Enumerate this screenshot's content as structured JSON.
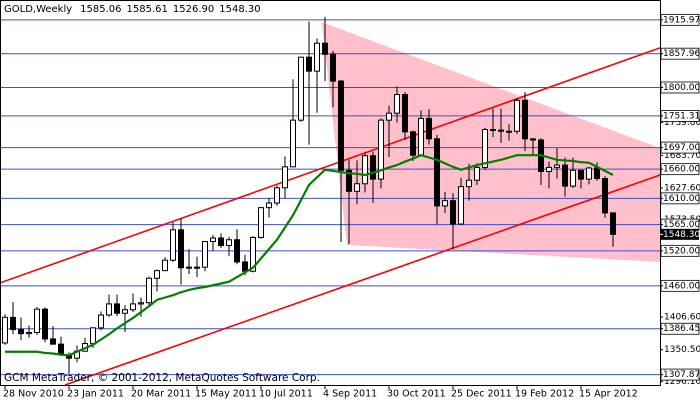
{
  "chart_data": {
    "type": "candlestick",
    "title": "GOLD,Weekly",
    "header_values": [
      "1585.06",
      "1585.61",
      "1526.90",
      "1548.30"
    ],
    "footer": "GCM MetaTrader, © 2001-2012, MetaQuotes Software Corp.",
    "categories": [
      "28 Nov 2010",
      null,
      null,
      null,
      null,
      null,
      null,
      null,
      "23 Jan 2011",
      null,
      null,
      null,
      null,
      null,
      null,
      null,
      "20 Mar 2011",
      null,
      null,
      null,
      null,
      null,
      null,
      null,
      "15 May 2011",
      null,
      null,
      null,
      null,
      null,
      null,
      null,
      "10 Jul 2011",
      null,
      null,
      null,
      null,
      null,
      null,
      null,
      "4 Sep 2011",
      null,
      null,
      null,
      null,
      null,
      null,
      null,
      "30 Oct 2011",
      null,
      null,
      null,
      null,
      null,
      null,
      null,
      "25 Dec 2011",
      null,
      null,
      null,
      null,
      null,
      null,
      null,
      "19 Feb 2012",
      null,
      null,
      null,
      null,
      null,
      null,
      null,
      "15 Apr 2012",
      null,
      null,
      null,
      null
    ],
    "open": [
      1362,
      1406,
      1385,
      1378,
      1380,
      1420,
      1369,
      1360,
      1342,
      1336,
      1348,
      1361,
      1388,
      1410,
      1429,
      1413,
      1419,
      1429,
      1431,
      1473,
      1486,
      1504,
      1556,
      1491,
      1492,
      1492,
      1536,
      1542,
      1529,
      1539,
      1501,
      1485,
      1543,
      1594,
      1602,
      1628,
      1664,
      1744,
      1852,
      1828,
      1876,
      1857,
      1811,
      1658,
      1622,
      1635,
      1683,
      1643,
      1744,
      1756,
      1788,
      1724,
      1684,
      1747,
      1712,
      1597,
      1606,
      1566,
      1630,
      1641,
      1663,
      1728,
      1727,
      1725,
      1725,
      1778,
      1712,
      1710,
      1656,
      1663,
      1667,
      1631,
      1658,
      1643,
      1662,
      1644,
      1585.06
    ],
    "high": [
      1411,
      1432,
      1406,
      1392,
      1424,
      1423,
      1391,
      1373,
      1346,
      1358,
      1371,
      1389,
      1416,
      1445,
      1445,
      1427,
      1447,
      1440,
      1476,
      1488,
      1509,
      1569,
      1575,
      1523,
      1510,
      1536,
      1547,
      1550,
      1544,
      1557,
      1513,
      1545,
      1595,
      1611,
      1632,
      1682,
      1814,
      1853,
      1913,
      1884,
      1921,
      1863,
      1813,
      1676,
      1675,
      1687,
      1690,
      1747,
      1769,
      1802,
      1792,
      1726,
      1761,
      1763,
      1719,
      1621,
      1619,
      1645,
      1669,
      1670,
      1731,
      1764,
      1764,
      1737,
      1782,
      1792,
      1713,
      1713,
      1673,
      1696,
      1680,
      1680,
      1658,
      1664,
      1672,
      1648,
      1585.61
    ],
    "low": [
      1359,
      1377,
      1367,
      1371,
      1376,
      1363,
      1362,
      1340,
      1309,
      1329,
      1347,
      1354,
      1384,
      1407,
      1408,
      1381,
      1415,
      1407,
      1425,
      1450,
      1486,
      1501,
      1462,
      1480,
      1475,
      1485,
      1520,
      1525,
      1511,
      1497,
      1478,
      1483,
      1541,
      1577,
      1597,
      1610,
      1664,
      1741,
      1702,
      1757,
      1811,
      1766,
      1535,
      1532,
      1600,
      1620,
      1602,
      1627,
      1681,
      1740,
      1710,
      1674,
      1682,
      1702,
      1565,
      1585,
      1523,
      1565,
      1606,
      1633,
      1659,
      1715,
      1705,
      1709,
      1720,
      1691,
      1683,
      1633,
      1627,
      1644,
      1613,
      1628,
      1627,
      1634,
      1640,
      1577,
      1526.9
    ],
    "close": [
      1406,
      1385,
      1378,
      1380,
      1420,
      1369,
      1360,
      1342,
      1336,
      1348,
      1361,
      1388,
      1410,
      1429,
      1413,
      1419,
      1429,
      1431,
      1473,
      1486,
      1504,
      1556,
      1491,
      1492,
      1492,
      1536,
      1542,
      1529,
      1539,
      1501,
      1485,
      1543,
      1594,
      1602,
      1628,
      1664,
      1744,
      1852,
      1828,
      1876,
      1857,
      1811,
      1658,
      1622,
      1635,
      1683,
      1643,
      1744,
      1756,
      1788,
      1724,
      1684,
      1747,
      1712,
      1597,
      1606,
      1566,
      1630,
      1641,
      1663,
      1728,
      1727,
      1725,
      1725,
      1778,
      1712,
      1710,
      1656,
      1663,
      1667,
      1631,
      1658,
      1643,
      1662,
      1644,
      1585,
      1548.3
    ],
    "moving_average": {
      "color": "#008000",
      "values": [
        1347,
        1347,
        1347,
        1347,
        1347,
        1345,
        1344,
        1342,
        1341,
        1347,
        1353,
        1359,
        1368,
        1377,
        1387,
        1396,
        1405,
        1415,
        1425,
        1436,
        1440,
        1444,
        1449,
        1453,
        1456,
        1458,
        1461,
        1464,
        1467,
        1475,
        1483,
        1491,
        1507,
        1523,
        1539,
        1560,
        1581,
        1607,
        1633,
        1646,
        1659,
        1657,
        1655,
        1653,
        1652,
        1650,
        1654,
        1658,
        1663,
        1667,
        1673,
        1678,
        1684,
        1680,
        1676,
        1670,
        1664,
        1659,
        1663,
        1667,
        1670,
        1673,
        1676,
        1680,
        1684,
        1684,
        1684,
        1684,
        1680,
        1676,
        1675,
        1674,
        1672,
        1671,
        1664,
        1657,
        1650
      ]
    },
    "bull_color": "#ffffff",
    "bear_color": "#000000",
    "triangle": {
      "color": "#ffc0cb",
      "x": [
        39.6,
        81.9,
        81.9,
        42.75
      ],
      "y": [
        1912,
        1696,
        1501,
        1530
      ]
    },
    "trendlines": [
      {
        "color": "#ff0000",
        "x": [
          -0.625,
          81.875
        ],
        "y": [
          1465,
          1868
        ]
      },
      {
        "color": "#ff0000",
        "x": [
          7.5,
          81.875
        ],
        "y": [
          1290,
          1650
        ]
      }
    ],
    "level_color": "#3c4fd0",
    "levels": [
      1915.97,
      1857.96,
      {
        "value": 1800,
        "label": "1800.00"
      },
      1751.31,
      {
        "value": 1697,
        "label": "1697.00"
      },
      {
        "value": 1660,
        "label": "1660.00"
      },
      {
        "value": 1610,
        "label": "1610.00"
      },
      {
        "value": 1565,
        "label": "1565.00"
      },
      {
        "value": 1520,
        "label": "1520.00"
      },
      {
        "value": 1460,
        "label": "1460.00"
      },
      1386.45,
      1307.87
    ],
    "current_price": {
      "value": 1548.3,
      "label": "1548.30"
    },
    "xlim": [
      -0.625,
      81.875
    ],
    "ylim": [
      1290,
      1950
    ],
    "yticks": [
      {
        "value": 1739.8,
        "label": "1739.80"
      },
      {
        "value": 1683.7,
        "label": "1683.70"
      },
      {
        "value": 1627.6,
        "label": "1627.60"
      },
      {
        "value": 1573.5,
        "label": "1573.50"
      },
      {
        "value": 1406.6,
        "label": "1406.60"
      },
      {
        "value": 1350.5,
        "label": "1350.50"
      },
      {
        "value": 1296.1,
        "label": "1296.10"
      }
    ]
  }
}
